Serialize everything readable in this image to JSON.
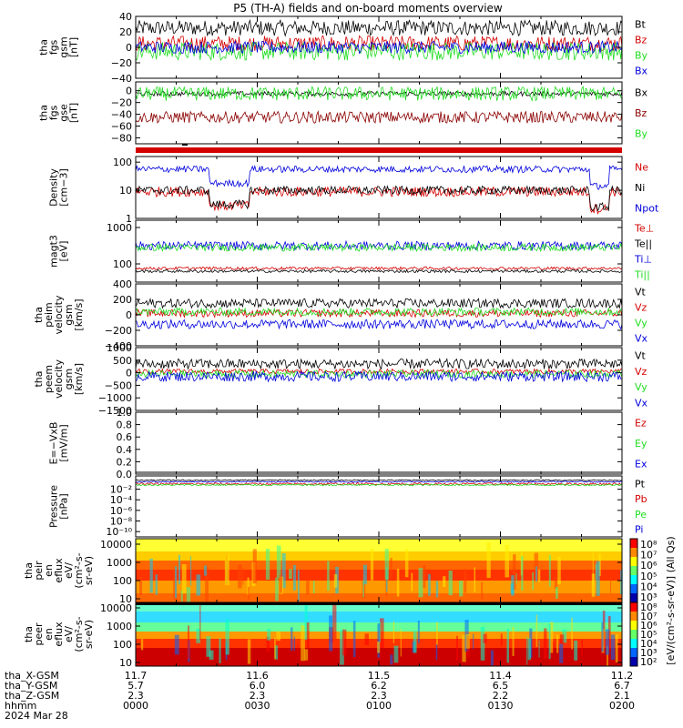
{
  "title": "P5 (TH-A) fields and on-board moments overview",
  "colors": {
    "black": "#000000",
    "red": "#d40000",
    "green": "#22dd22",
    "blue": "#0000dd",
    "darkred": "#8b0000"
  },
  "chart_data": [
    {
      "type": "line",
      "ylabel": [
        "tha",
        "fgs",
        "gsm",
        "[nT]"
      ],
      "ylim": [
        -40,
        40
      ],
      "log": false,
      "ticks": [
        {
          "v": 40,
          "l": "40"
        },
        {
          "v": 20,
          "l": "20"
        },
        {
          "v": 0,
          "l": "0"
        },
        {
          "v": -20,
          "l": "−20"
        },
        {
          "v": -40,
          "l": "−40"
        }
      ],
      "series": [
        {
          "name": "Bt",
          "color": "black",
          "base": 25,
          "amp": 10
        },
        {
          "name": "Bz",
          "color": "red",
          "base": 5,
          "amp": 10
        },
        {
          "name": "By",
          "color": "green",
          "base": -5,
          "amp": 12
        },
        {
          "name": "Bx",
          "color": "blue",
          "base": 0,
          "amp": 8
        }
      ]
    },
    {
      "type": "line",
      "ylabel": [
        "tha",
        "fgs",
        "gse",
        "[nT]"
      ],
      "ylim": [
        -90,
        15
      ],
      "log": false,
      "ticks": [
        {
          "v": 0,
          "l": "0"
        },
        {
          "v": -20,
          "l": "−20"
        },
        {
          "v": -40,
          "l": "−40"
        },
        {
          "v": -60,
          "l": "−60"
        },
        {
          "v": -80,
          "l": "−80"
        }
      ],
      "series": [
        {
          "name": "Bx",
          "color": "black",
          "base": -5,
          "amp": 4
        },
        {
          "name": "Bz",
          "color": "darkred",
          "base": -45,
          "amp": 10
        },
        {
          "name": "By",
          "color": "green",
          "base": -5,
          "amp": 12
        }
      ]
    },
    {
      "type": "line",
      "ylabel": [
        "Density",
        "[cm−3]"
      ],
      "ylim": [
        0,
        2.2
      ],
      "log": true,
      "ticks": [
        {
          "v": 0,
          "l": "1"
        },
        {
          "v": 1,
          "l": "10"
        },
        {
          "v": 2,
          "l": "100"
        }
      ],
      "series": [
        {
          "name": "Ne",
          "color": "red",
          "base": 0.95,
          "amp": 0.18
        },
        {
          "name": "Ni",
          "color": "black",
          "base": 1.0,
          "amp": 0.15
        },
        {
          "name": "Npot",
          "color": "blue",
          "base": 1.75,
          "amp": 0.12
        }
      ]
    },
    {
      "type": "line",
      "ylabel": [
        "magt3",
        "[eV]"
      ],
      "ylim": [
        1.5,
        3.2
      ],
      "log": true,
      "ticks": [
        {
          "v": 2,
          "l": "100"
        },
        {
          "v": 3,
          "l": "1000"
        }
      ],
      "series": [
        {
          "name": "Te⊥",
          "color": "red",
          "base": 1.88,
          "amp": 0.04
        },
        {
          "name": "Te||",
          "color": "black",
          "base": 1.8,
          "amp": 0.04
        },
        {
          "name": "Ti⊥",
          "color": "blue",
          "base": 2.5,
          "amp": 0.12
        },
        {
          "name": "Ti||",
          "color": "green",
          "base": 2.45,
          "amp": 0.1
        }
      ]
    },
    {
      "type": "line",
      "ylabel": [
        "tha",
        "peim",
        "velocity",
        "gsm",
        "[km/s]"
      ],
      "ylim": [
        -400,
        400
      ],
      "log": false,
      "ticks": [
        {
          "v": 400,
          "l": "400"
        },
        {
          "v": 200,
          "l": "200"
        },
        {
          "v": 0,
          "l": "0"
        },
        {
          "v": -200,
          "l": "−200"
        },
        {
          "v": -400,
          "l": "−400"
        }
      ],
      "series": [
        {
          "name": "Vt",
          "color": "black",
          "base": 150,
          "amp": 60
        },
        {
          "name": "Vz",
          "color": "red",
          "base": 20,
          "amp": 50
        },
        {
          "name": "Vy",
          "color": "green",
          "base": 40,
          "amp": 50
        },
        {
          "name": "Vx",
          "color": "blue",
          "base": -120,
          "amp": 60
        }
      ]
    },
    {
      "type": "line",
      "ylabel": [
        "tha",
        "peem",
        "velocity",
        "gsm",
        "[km/s]"
      ],
      "ylim": [
        -1500,
        1000
      ],
      "log": false,
      "ticks": [
        {
          "v": 1000,
          "l": "1000"
        },
        {
          "v": 500,
          "l": "500"
        },
        {
          "v": 0,
          "l": "0"
        },
        {
          "v": -500,
          "l": "−500"
        },
        {
          "v": -1000,
          "l": "−1000"
        },
        {
          "v": -1500,
          "l": "−1500"
        }
      ],
      "series": [
        {
          "name": "Vt",
          "color": "black",
          "base": 350,
          "amp": 200
        },
        {
          "name": "Vz",
          "color": "red",
          "base": 50,
          "amp": 100
        },
        {
          "name": "Vy",
          "color": "green",
          "base": -50,
          "amp": 150
        },
        {
          "name": "Vx",
          "color": "blue",
          "base": -150,
          "amp": 200
        }
      ]
    },
    {
      "type": "line",
      "ylabel": [
        "E=−VxB",
        "[mV/m]"
      ],
      "ylim": [
        0,
        1
      ],
      "log": false,
      "ticks": [
        {
          "v": 1,
          "l": "1.0"
        },
        {
          "v": 0.8,
          "l": "0.8"
        },
        {
          "v": 0.6,
          "l": "0.6"
        },
        {
          "v": 0.4,
          "l": "0.4"
        },
        {
          "v": 0.2,
          "l": "0.2"
        },
        {
          "v": 0,
          "l": "0.0"
        }
      ],
      "series": [
        {
          "name": "Ez",
          "color": "red",
          "base": null,
          "amp": 0
        },
        {
          "name": "Ey",
          "color": "green",
          "base": null,
          "amp": 0
        },
        {
          "name": "Ex",
          "color": "blue",
          "base": null,
          "amp": 0
        }
      ]
    },
    {
      "type": "line",
      "ylabel": [
        "Pressure",
        "[nPa]"
      ],
      "ylim": [
        -11,
        0.5
      ],
      "log": true,
      "ticks": [
        {
          "v": -2,
          "l": "10⁻²"
        },
        {
          "v": -4,
          "l": "10⁻⁴"
        },
        {
          "v": -6,
          "l": "10⁻⁶"
        },
        {
          "v": -8,
          "l": "10⁻⁸"
        },
        {
          "v": -10,
          "l": "10⁻¹⁰"
        }
      ],
      "series": [
        {
          "name": "Pt",
          "color": "black",
          "base": -0.3,
          "amp": 0.1
        },
        {
          "name": "Pb",
          "color": "red",
          "base": -1.0,
          "amp": 0.2
        },
        {
          "name": "Pe",
          "color": "green",
          "base": -1.2,
          "amp": 0.15
        },
        {
          "name": "Pi",
          "color": "blue",
          "base": -0.6,
          "amp": 0.1
        }
      ]
    },
    {
      "type": "heatmap",
      "ylabel": [
        "tha",
        "peir",
        "en",
        "eflux",
        "eV/",
        "(cm²-s-",
        "sr-eV)"
      ],
      "ylim": [
        0.8,
        4.3
      ],
      "log": true,
      "ticks": [
        {
          "v": 4,
          "l": "10000"
        },
        {
          "v": 3,
          "l": "1000"
        },
        {
          "v": 2,
          "l": "100"
        },
        {
          "v": 1,
          "l": "10"
        }
      ],
      "cbar": [
        "10⁸",
        "10⁷",
        "10⁶",
        "10⁵",
        "10⁴",
        "10³"
      ]
    },
    {
      "type": "heatmap",
      "ylabel": [
        "tha",
        "peer",
        "en",
        "eflux",
        "eV/",
        "(cm²-s-",
        "sr-eV)"
      ],
      "ylim": [
        0.8,
        4.3
      ],
      "log": true,
      "ticks": [
        {
          "v": 4,
          "l": "10000"
        },
        {
          "v": 3,
          "l": "1000"
        },
        {
          "v": 2,
          "l": "100"
        },
        {
          "v": 1,
          "l": "10"
        }
      ],
      "cbar": [
        "10⁸",
        "10⁷",
        "10⁶",
        "10⁵",
        "10⁴",
        "10³",
        "10²"
      ]
    }
  ],
  "cbar_label": "[eV/(cm²-s-sr-eV)] (All Qs)",
  "footer": {
    "row_labels": [
      "tha_X-GSM",
      "tha_Y-GSM",
      "tha_Z-GSM",
      "hhmm",
      "2024 Mar 28"
    ],
    "ticks": [
      {
        "x": 0,
        "v": [
          "11.7",
          "5.7",
          "2.3",
          "0000"
        ]
      },
      {
        "x": 30,
        "v": [
          "11.6",
          "6.0",
          "2.3",
          "0030"
        ]
      },
      {
        "x": 60,
        "v": [
          "11.5",
          "6.2",
          "2.3",
          "0100"
        ]
      },
      {
        "x": 90,
        "v": [
          "11.4",
          "6.5",
          "2.2",
          "0130"
        ]
      },
      {
        "x": 120,
        "v": [
          "11.2",
          "6.7",
          "2.1",
          "0200"
        ]
      }
    ]
  }
}
